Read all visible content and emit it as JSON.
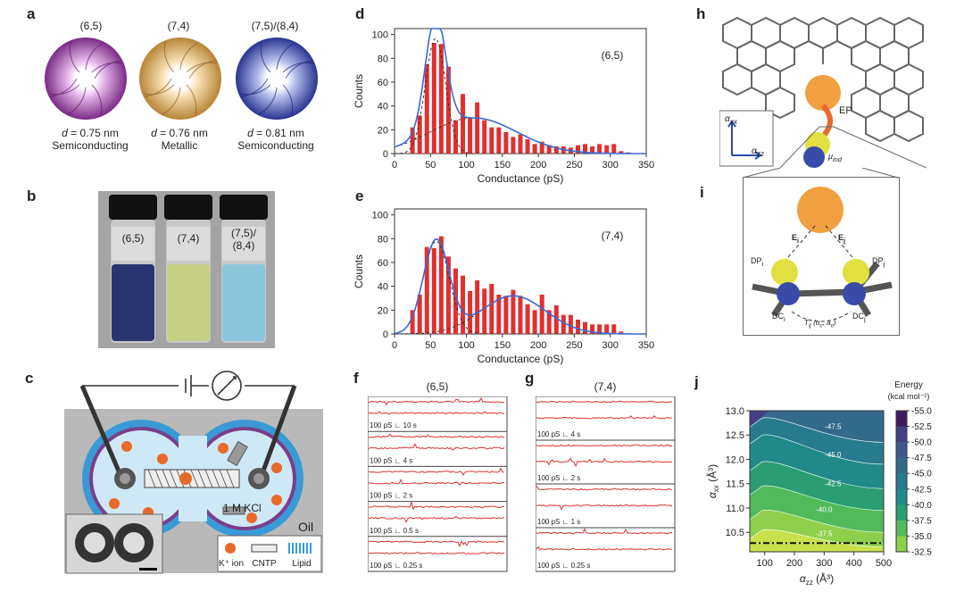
{
  "panels": {
    "a": "a",
    "b": "b",
    "c": "c",
    "d": "d",
    "e": "e",
    "f": "f",
    "g": "g",
    "h": "h",
    "i": "i",
    "j": "j"
  },
  "panel_a": {
    "tubes": [
      {
        "label": "(6,5)",
        "d_label": "d",
        "d_value": " = 0.75 nm",
        "type": "Semiconducting",
        "color": "#a04aa8"
      },
      {
        "label": "(7,4)",
        "d_label": "d",
        "d_value": " = 0.76 nm",
        "type": "Metallic",
        "color": "#d9a760"
      },
      {
        "label": "(7,5)/(8,4)",
        "d_label": "d",
        "d_value": " = 0.81 nm",
        "type": "Semiconducting",
        "color": "#3a4aa8"
      }
    ]
  },
  "panel_b": {
    "vials": [
      {
        "label": "(6,5)",
        "color": "#2e3a78"
      },
      {
        "label": "(7,4)",
        "color": "#c8d38a"
      },
      {
        "label1": "(7,5)/",
        "label2": "(8,4)",
        "color": "#8ec7de"
      }
    ]
  },
  "panel_c": {
    "kcl": "1 M KCl",
    "oil": "Oil",
    "legend": {
      "ion": "K⁺ ion",
      "cntp": "CNTP",
      "lipid": "Lipid"
    }
  },
  "chart_data": [
    {
      "type": "bar",
      "panel": "d",
      "annotation": "(6,5)",
      "xlabel": "Conductance (pS)",
      "ylabel": "Counts",
      "xlim": [
        0,
        350
      ],
      "ylim": [
        0,
        105
      ],
      "xticks": [
        "0",
        "50",
        "100",
        "150",
        "200",
        "250",
        "300",
        "350"
      ],
      "yticks": [
        "0",
        "20",
        "40",
        "60",
        "80",
        "100"
      ],
      "x": [
        25,
        35,
        45,
        55,
        65,
        75,
        85,
        95,
        105,
        115,
        125,
        135,
        145,
        155,
        165,
        175,
        185,
        195,
        205,
        215,
        225,
        235,
        245,
        255,
        265,
        275,
        285,
        295,
        305,
        315,
        325
      ],
      "values": [
        22,
        32,
        75,
        93,
        92,
        73,
        28,
        50,
        30,
        43,
        28,
        22,
        22,
        18,
        14,
        16,
        12,
        8,
        10,
        7,
        6,
        6,
        5,
        7,
        8,
        6,
        8,
        7,
        8,
        2,
        1
      ],
      "fit_peaks": [
        {
          "center": 57,
          "height": 97,
          "width": 14
        },
        {
          "center": 110,
          "height": 30,
          "width": 60
        }
      ],
      "grid": false
    },
    {
      "type": "bar",
      "panel": "e",
      "annotation": "(7,4)",
      "xlabel": "Conductance (pS)",
      "ylabel": "Counts",
      "xlim": [
        0,
        350
      ],
      "ylim": [
        0,
        105
      ],
      "xticks": [
        "0",
        "50",
        "100",
        "150",
        "200",
        "250",
        "300",
        "350"
      ],
      "yticks": [
        "0",
        "20",
        "40",
        "60",
        "80",
        "100"
      ],
      "x": [
        25,
        35,
        45,
        55,
        65,
        75,
        85,
        95,
        105,
        115,
        125,
        135,
        145,
        155,
        165,
        175,
        185,
        195,
        205,
        215,
        225,
        235,
        245,
        255,
        265,
        275,
        285,
        295,
        305,
        315
      ],
      "values": [
        20,
        33,
        73,
        72,
        82,
        65,
        55,
        49,
        36,
        45,
        38,
        42,
        33,
        32,
        37,
        32,
        25,
        20,
        33,
        20,
        24,
        16,
        16,
        12,
        10,
        8,
        8,
        8,
        8,
        2
      ],
      "fit_peaks": [
        {
          "center": 58,
          "height": 78,
          "width": 18
        },
        {
          "center": 165,
          "height": 32,
          "width": 45
        }
      ],
      "grid": false
    },
    {
      "type": "heatmap",
      "panel": "j",
      "xlabel": "α",
      "xlabel_sub": "zz",
      "xlabel_unit": " (Å³)",
      "ylabel": "α",
      "ylabel_sub": "xx",
      "ylabel_unit": " (Å³)",
      "xlim": [
        50,
        500
      ],
      "ylim": [
        10.1,
        13.0
      ],
      "xticks": [
        "100",
        "200",
        "300",
        "400",
        "500"
      ],
      "yticks": [
        "10.5",
        "11.0",
        "11.5",
        "12.0",
        "12.5",
        "13.0"
      ],
      "colorbar_title": "Energy",
      "colorbar_unit": "(kcal mol⁻¹)",
      "colorbar_ticks": [
        "-55.0",
        "-52.5",
        "-50.0",
        "-47.5",
        "-45.0",
        "-42.5",
        "-40.0",
        "-37.5",
        "-35.0",
        "-32.5"
      ],
      "contour_labels": [
        "-47.5",
        "-45.0",
        "-42.5",
        "-40.0",
        "-37.5"
      ],
      "dashed_line_y": 10.28
    }
  ],
  "panel_f": {
    "title": "(6,5)",
    "traces": [
      {
        "scale": "100 pS",
        "time": "10 s"
      },
      {
        "scale": "100 pS",
        "time": "4 s"
      },
      {
        "scale": "100 pS",
        "time": "2 s"
      },
      {
        "scale": "100 pS",
        "time": "0.5 s"
      },
      {
        "scale": "100 pS",
        "time": "0.25 s"
      }
    ]
  },
  "panel_g": {
    "title": "(7,4)",
    "traces": [
      {
        "scale": "100 pS",
        "time": "4 s"
      },
      {
        "scale": "100 pS",
        "time": "2 s"
      },
      {
        "scale": "100 pS",
        "time": "1 s"
      },
      {
        "scale": "100 pS",
        "time": "0.25 s"
      }
    ]
  },
  "panel_h": {
    "ep": "EP",
    "axis_x": "α",
    "axis_x_sub": "zz",
    "axis_y": "α",
    "axis_y_sub": "xx",
    "mu": "μ",
    "mu_sub": "ind"
  },
  "panel_i": {
    "ei": "E",
    "ei_sub": "i",
    "ej": "E",
    "ej_sub": "j",
    "dpi": "DP",
    "dpi_sub": "i",
    "dpj": "DP",
    "dpj_sub": "j",
    "dci": "DC",
    "dci_sub": "i",
    "dcj": "DC",
    "dcj_sub": "j",
    "t": "T",
    "t_sub": "ij",
    "t_args": "(α",
    "t_args2": ", a",
    ")": ")"
  }
}
